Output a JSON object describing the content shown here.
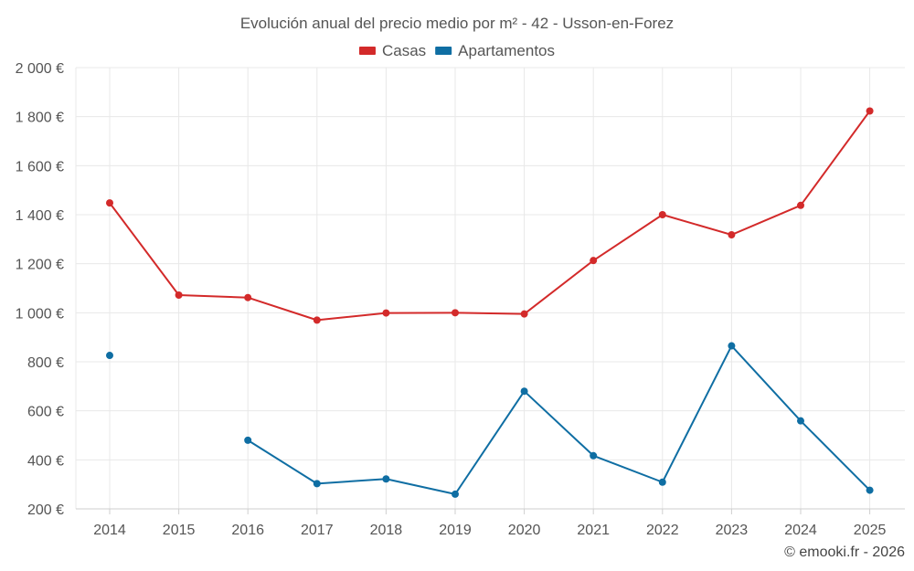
{
  "chart_data": {
    "type": "line",
    "title": "Evolución anual del precio medio por m² - 42 - Usson-en-Forez",
    "categories": [
      "2014",
      "2015",
      "2016",
      "2017",
      "2018",
      "2019",
      "2020",
      "2021",
      "2022",
      "2023",
      "2024",
      "2025"
    ],
    "series": [
      {
        "name": "Casas",
        "color": "#d32a2a",
        "values": [
          1448,
          1072,
          1062,
          970,
          999,
          1000,
          995,
          1213,
          1400,
          1318,
          1438,
          1823
        ]
      },
      {
        "name": "Apartamentos",
        "color": "#0f6ea3",
        "values": [
          826,
          null,
          480,
          303,
          322,
          260,
          680,
          417,
          309,
          865,
          559,
          276
        ]
      }
    ],
    "ylim": [
      200,
      2000
    ],
    "yticks": [
      200,
      400,
      600,
      800,
      1000,
      1200,
      1400,
      1600,
      1800,
      2000
    ],
    "ytick_labels": [
      "200 €",
      "400 €",
      "600 €",
      "800 €",
      "1 000 €",
      "1 200 €",
      "1 400 €",
      "1 600 €",
      "1 800 €",
      "2 000 €"
    ],
    "xlabel": "",
    "ylabel": "",
    "grid": true,
    "legend": "top-center"
  },
  "credit": "© emooki.fr - 2026"
}
